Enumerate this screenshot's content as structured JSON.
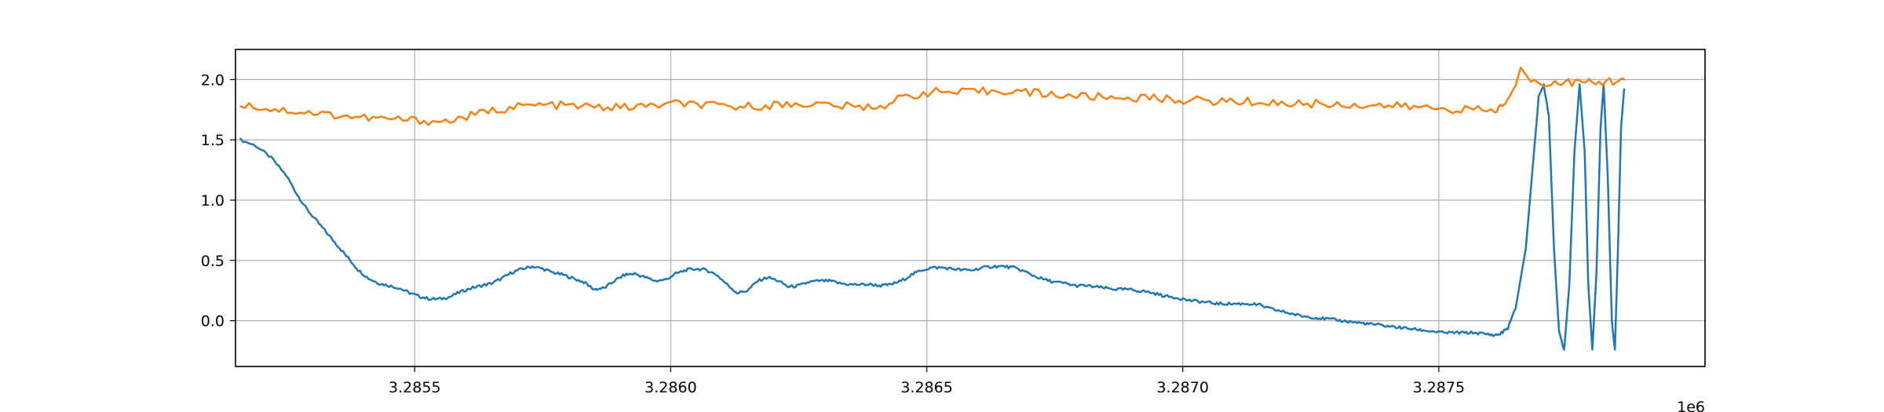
{
  "chart_data": {
    "type": "line",
    "title": "",
    "xlabel": "",
    "ylabel": "",
    "x_offset_label": "1e6",
    "xlim": [
      3.28515,
      3.28802
    ],
    "ylim": [
      -0.38,
      2.25
    ],
    "grid": true,
    "legend": "none",
    "x_ticks": [
      3.2855,
      3.286,
      3.2865,
      3.287,
      3.2875
    ],
    "x_tick_labels": [
      "3.2855",
      "3.2860",
      "3.2865",
      "3.2870",
      "3.2875"
    ],
    "y_ticks": [
      0.0,
      0.5,
      1.0,
      1.5,
      2.0
    ],
    "y_tick_labels": [
      "0.0",
      "0.5",
      "1.0",
      "1.5",
      "2.0"
    ],
    "series": [
      {
        "color": "#1f77b4",
        "points": [
          [
            3.28516,
            1.5
          ],
          [
            3.28519,
            1.45
          ],
          [
            3.28522,
            1.35
          ],
          [
            3.28525,
            1.2
          ],
          [
            3.28527,
            1.05
          ],
          [
            3.28529,
            0.92
          ],
          [
            3.28531,
            0.82
          ],
          [
            3.28533,
            0.72
          ],
          [
            3.28535,
            0.62
          ],
          [
            3.28537,
            0.52
          ],
          [
            3.28539,
            0.42
          ],
          [
            3.28541,
            0.35
          ],
          [
            3.28543,
            0.31
          ],
          [
            3.28545,
            0.29
          ],
          [
            3.28547,
            0.27
          ],
          [
            3.28549,
            0.23
          ],
          [
            3.28551,
            0.2
          ],
          [
            3.28553,
            0.18
          ],
          [
            3.28555,
            0.18
          ],
          [
            3.28557,
            0.2
          ],
          [
            3.28559,
            0.24
          ],
          [
            3.28561,
            0.27
          ],
          [
            3.28563,
            0.29
          ],
          [
            3.28565,
            0.31
          ],
          [
            3.28567,
            0.35
          ],
          [
            3.28569,
            0.4
          ],
          [
            3.28571,
            0.43
          ],
          [
            3.28573,
            0.45
          ],
          [
            3.28575,
            0.43
          ],
          [
            3.28577,
            0.4
          ],
          [
            3.28579,
            0.38
          ],
          [
            3.28581,
            0.35
          ],
          [
            3.28583,
            0.32
          ],
          [
            3.28585,
            0.26
          ],
          [
            3.28587,
            0.27
          ],
          [
            3.28589,
            0.33
          ],
          [
            3.28591,
            0.38
          ],
          [
            3.28593,
            0.39
          ],
          [
            3.28595,
            0.36
          ],
          [
            3.28597,
            0.33
          ],
          [
            3.28599,
            0.34
          ],
          [
            3.28601,
            0.39
          ],
          [
            3.28603,
            0.42
          ],
          [
            3.28605,
            0.43
          ],
          [
            3.28607,
            0.42
          ],
          [
            3.28609,
            0.38
          ],
          [
            3.28611,
            0.3
          ],
          [
            3.28613,
            0.23
          ],
          [
            3.28615,
            0.25
          ],
          [
            3.28617,
            0.33
          ],
          [
            3.28619,
            0.36
          ],
          [
            3.28621,
            0.33
          ],
          [
            3.28623,
            0.28
          ],
          [
            3.28625,
            0.29
          ],
          [
            3.28627,
            0.32
          ],
          [
            3.28629,
            0.33
          ],
          [
            3.28631,
            0.33
          ],
          [
            3.28633,
            0.31
          ],
          [
            3.28635,
            0.3
          ],
          [
            3.28637,
            0.3
          ],
          [
            3.28639,
            0.3
          ],
          [
            3.28641,
            0.29
          ],
          [
            3.28643,
            0.3
          ],
          [
            3.28645,
            0.33
          ],
          [
            3.28647,
            0.38
          ],
          [
            3.28649,
            0.42
          ],
          [
            3.28651,
            0.44
          ],
          [
            3.28653,
            0.44
          ],
          [
            3.28655,
            0.43
          ],
          [
            3.28657,
            0.42
          ],
          [
            3.28659,
            0.42
          ],
          [
            3.28661,
            0.44
          ],
          [
            3.28663,
            0.45
          ],
          [
            3.28665,
            0.45
          ],
          [
            3.28667,
            0.44
          ],
          [
            3.28669,
            0.41
          ],
          [
            3.28671,
            0.37
          ],
          [
            3.28673,
            0.34
          ],
          [
            3.28675,
            0.32
          ],
          [
            3.28677,
            0.31
          ],
          [
            3.28679,
            0.29
          ],
          [
            3.28681,
            0.29
          ],
          [
            3.28683,
            0.28
          ],
          [
            3.28685,
            0.27
          ],
          [
            3.28687,
            0.26
          ],
          [
            3.28689,
            0.26
          ],
          [
            3.28691,
            0.25
          ],
          [
            3.28693,
            0.24
          ],
          [
            3.28695,
            0.22
          ],
          [
            3.28697,
            0.2
          ],
          [
            3.28699,
            0.19
          ],
          [
            3.28701,
            0.17
          ],
          [
            3.28703,
            0.16
          ],
          [
            3.28705,
            0.15
          ],
          [
            3.28707,
            0.14
          ],
          [
            3.28709,
            0.14
          ],
          [
            3.28711,
            0.14
          ],
          [
            3.28713,
            0.14
          ],
          [
            3.28715,
            0.13
          ],
          [
            3.28717,
            0.1
          ],
          [
            3.28719,
            0.08
          ],
          [
            3.28721,
            0.06
          ],
          [
            3.28723,
            0.04
          ],
          [
            3.28725,
            0.03
          ],
          [
            3.28727,
            0.02
          ],
          [
            3.28729,
            0.01
          ],
          [
            3.28731,
            0.0
          ],
          [
            3.28733,
            -0.01
          ],
          [
            3.28735,
            -0.02
          ],
          [
            3.28737,
            -0.03
          ],
          [
            3.28739,
            -0.04
          ],
          [
            3.28741,
            -0.05
          ],
          [
            3.28743,
            -0.06
          ],
          [
            3.28745,
            -0.07
          ],
          [
            3.28747,
            -0.08
          ],
          [
            3.28749,
            -0.09
          ],
          [
            3.28751,
            -0.1
          ],
          [
            3.28753,
            -0.1
          ],
          [
            3.28755,
            -0.1
          ],
          [
            3.28757,
            -0.1
          ],
          [
            3.28759,
            -0.11
          ],
          [
            3.28761,
            -0.12
          ],
          [
            3.28762,
            -0.11
          ],
          [
            3.287635,
            -0.06
          ],
          [
            3.28765,
            0.1
          ],
          [
            3.28767,
            0.6
          ],
          [
            3.28768,
            1.1
          ],
          [
            3.28769,
            1.6
          ],
          [
            3.287695,
            1.85
          ],
          [
            3.287705,
            1.96
          ],
          [
            3.287715,
            1.7
          ],
          [
            3.287725,
            0.6
          ],
          [
            3.287735,
            -0.1
          ],
          [
            3.287745,
            -0.24
          ],
          [
            3.287755,
            0.3
          ],
          [
            3.287765,
            1.4
          ],
          [
            3.287775,
            1.96
          ],
          [
            3.287785,
            1.4
          ],
          [
            3.287792,
            0.3
          ],
          [
            3.2878,
            -0.24
          ],
          [
            3.287808,
            0.4
          ],
          [
            3.287816,
            1.6
          ],
          [
            3.287822,
            1.96
          ],
          [
            3.28783,
            1.2
          ],
          [
            3.287838,
            0.0
          ],
          [
            3.287844,
            -0.24
          ],
          [
            3.28785,
            0.6
          ],
          [
            3.287856,
            1.6
          ],
          [
            3.287862,
            1.92
          ]
        ]
      },
      {
        "color": "#ff7f0e",
        "points": [
          [
            3.28516,
            1.8
          ],
          [
            3.28521,
            1.76
          ],
          [
            3.28526,
            1.74
          ],
          [
            3.28531,
            1.72
          ],
          [
            3.28536,
            1.7
          ],
          [
            3.28541,
            1.68
          ],
          [
            3.28546,
            1.67
          ],
          [
            3.28551,
            1.66
          ],
          [
            3.28556,
            1.65
          ],
          [
            3.28561,
            1.7
          ],
          [
            3.28566,
            1.75
          ],
          [
            3.28571,
            1.78
          ],
          [
            3.28576,
            1.79
          ],
          [
            3.28581,
            1.78
          ],
          [
            3.28586,
            1.77
          ],
          [
            3.28591,
            1.77
          ],
          [
            3.28596,
            1.78
          ],
          [
            3.28601,
            1.8
          ],
          [
            3.28606,
            1.79
          ],
          [
            3.28611,
            1.77
          ],
          [
            3.28616,
            1.78
          ],
          [
            3.28621,
            1.79
          ],
          [
            3.28626,
            1.8
          ],
          [
            3.28631,
            1.79
          ],
          [
            3.28636,
            1.77
          ],
          [
            3.28641,
            1.78
          ],
          [
            3.28646,
            1.86
          ],
          [
            3.28651,
            1.9
          ],
          [
            3.28656,
            1.89
          ],
          [
            3.28661,
            1.9
          ],
          [
            3.28666,
            1.91
          ],
          [
            3.28671,
            1.89
          ],
          [
            3.28676,
            1.87
          ],
          [
            3.28681,
            1.86
          ],
          [
            3.28686,
            1.85
          ],
          [
            3.28691,
            1.85
          ],
          [
            3.28696,
            1.84
          ],
          [
            3.28701,
            1.83
          ],
          [
            3.28706,
            1.82
          ],
          [
            3.28711,
            1.82
          ],
          [
            3.28716,
            1.81
          ],
          [
            3.28721,
            1.8
          ],
          [
            3.28726,
            1.8
          ],
          [
            3.28731,
            1.79
          ],
          [
            3.28736,
            1.79
          ],
          [
            3.28741,
            1.78
          ],
          [
            3.28746,
            1.77
          ],
          [
            3.28751,
            1.76
          ],
          [
            3.28756,
            1.75
          ],
          [
            3.28761,
            1.74
          ],
          [
            3.28763,
            1.8
          ],
          [
            3.28765,
            1.95
          ],
          [
            3.28766,
            2.1
          ],
          [
            3.28768,
            1.98
          ],
          [
            3.28772,
            1.97
          ],
          [
            3.28776,
            1.98
          ],
          [
            3.2878,
            1.97
          ],
          [
            3.28784,
            1.99
          ],
          [
            3.287862,
            2.0
          ]
        ]
      }
    ]
  }
}
